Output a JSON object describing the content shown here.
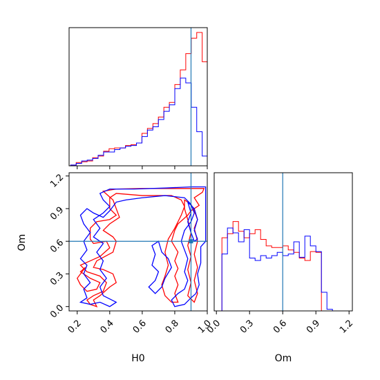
{
  "colors": {
    "red": "#ff0000",
    "blue": "#0000ff",
    "truth": "#1f77b4"
  },
  "truth": {
    "H0": 0.9,
    "Om": 0.6
  },
  "axis_labels": {
    "x_left": "H0",
    "x_right": "Om",
    "y_left": "Om"
  },
  "chart_data": [
    {
      "panel": "H0 marginal",
      "type": "histogram",
      "xlim": [
        0.15,
        1.0
      ],
      "grid": false,
      "x_ticks": [
        0.2,
        0.4,
        0.6,
        0.8,
        1.0
      ],
      "y_ticks": [],
      "bin_edges": [
        0.16,
        0.1937,
        0.2274,
        0.2611,
        0.2948,
        0.3285,
        0.3622,
        0.3959,
        0.4296,
        0.4633,
        0.497,
        0.5307,
        0.5644,
        0.5981,
        0.6318,
        0.6655,
        0.6992,
        0.7329,
        0.7666,
        0.8003,
        0.834,
        0.8677,
        0.9014,
        0.9351,
        0.9688,
        1.0
      ],
      "series": [
        {
          "color": "red",
          "values": [
            1,
            4,
            5,
            6,
            10,
            12,
            18,
            21,
            22,
            22,
            25,
            26,
            28,
            40,
            46,
            52,
            60,
            72,
            78,
            100,
            118,
            138,
            157,
            164,
            128
          ]
        },
        {
          "color": "blue",
          "values": [
            1,
            3,
            6,
            7,
            9,
            13,
            17,
            17,
            20,
            22,
            24,
            25,
            28,
            36,
            44,
            48,
            57,
            67,
            75,
            95,
            108,
            102,
            72,
            42,
            12
          ]
        }
      ]
    },
    {
      "panel": "Om marginal",
      "type": "histogram",
      "xlim": [
        -0.02,
        1.23
      ],
      "grid": false,
      "x_ticks": [
        0.0,
        0.3,
        0.6,
        0.9,
        1.2
      ],
      "y_ticks": [],
      "bin_edges": [
        0.0,
        0.05,
        0.1,
        0.15,
        0.2,
        0.25,
        0.3,
        0.35,
        0.4,
        0.45,
        0.5,
        0.55,
        0.6,
        0.65,
        0.7,
        0.75,
        0.8,
        0.85,
        0.9,
        0.95,
        1.0,
        1.05,
        1.1,
        1.15
      ],
      "series": [
        {
          "color": "red",
          "values": [
            0,
            90,
            95,
            110,
            98,
            90,
            95,
            100,
            88,
            80,
            78,
            78,
            80,
            75,
            72,
            65,
            62,
            73,
            72,
            0,
            0,
            0,
            0
          ]
        },
        {
          "color": "blue",
          "values": [
            0,
            70,
            102,
            96,
            85,
            100,
            65,
            62,
            68,
            65,
            68,
            72,
            68,
            70,
            85,
            66,
            92,
            80,
            73,
            23,
            2,
            0,
            0
          ]
        }
      ]
    },
    {
      "panel": "H0 vs Om joint",
      "type": "contour",
      "xlim": [
        0.15,
        1.0
      ],
      "ylim": [
        -0.04,
        1.23
      ],
      "grid": false,
      "x_ticks": [
        0.2,
        0.4,
        0.6,
        0.8,
        1.0
      ],
      "y_ticks": [
        0.0,
        0.3,
        0.6,
        0.9,
        1.2
      ],
      "series": [
        {
          "color": "red",
          "contours": [
            [
              [
                0.36,
                1.06
              ],
              [
                0.44,
                1.08
              ],
              [
                0.6,
                1.085
              ],
              [
                0.8,
                1.085
              ],
              [
                0.98,
                1.085
              ],
              [
                0.97,
                1.05
              ],
              [
                0.92,
                1.0
              ],
              [
                0.95,
                0.93
              ],
              [
                0.92,
                0.9
              ],
              [
                0.9,
                0.88
              ],
              [
                0.88,
                0.84
              ],
              [
                0.85,
                0.8
              ],
              [
                0.82,
                0.76
              ],
              [
                0.8,
                0.7
              ],
              [
                0.78,
                0.6
              ],
              [
                0.82,
                0.5
              ],
              [
                0.8,
                0.42
              ],
              [
                0.82,
                0.35
              ],
              [
                0.8,
                0.28
              ],
              [
                0.82,
                0.2
              ],
              [
                0.8,
                0.12
              ],
              [
                0.82,
                0.04
              ],
              [
                0.78,
                0.04
              ],
              [
                0.74,
                0.1
              ],
              [
                0.72,
                0.2
              ],
              [
                0.74,
                0.28
              ],
              [
                0.76,
                0.38
              ],
              [
                0.74,
                0.5
              ],
              [
                0.76,
                0.62
              ],
              [
                0.8,
                0.72
              ],
              [
                0.84,
                0.84
              ],
              [
                0.86,
                0.92
              ],
              [
                0.84,
                0.98
              ],
              [
                0.78,
                1.02
              ],
              [
                0.6,
                1.02
              ],
              [
                0.44,
                1.04
              ],
              [
                0.4,
                1.0
              ],
              [
                0.4,
                0.9
              ],
              [
                0.44,
                0.84
              ],
              [
                0.4,
                0.8
              ],
              [
                0.32,
                0.78
              ],
              [
                0.28,
                0.72
              ],
              [
                0.28,
                0.62
              ],
              [
                0.3,
                0.58
              ],
              [
                0.38,
                0.6
              ],
              [
                0.4,
                0.54
              ],
              [
                0.34,
                0.46
              ],
              [
                0.28,
                0.42
              ],
              [
                0.22,
                0.38
              ],
              [
                0.26,
                0.32
              ],
              [
                0.34,
                0.28
              ],
              [
                0.38,
                0.22
              ],
              [
                0.36,
                0.14
              ],
              [
                0.3,
                0.1
              ],
              [
                0.26,
                0.06
              ],
              [
                0.28,
                0.02
              ],
              [
                0.32,
                0.0
              ],
              [
                0.3,
                0.06
              ],
              [
                0.34,
                0.1
              ],
              [
                0.4,
                0.18
              ],
              [
                0.44,
                0.22
              ],
              [
                0.42,
                0.3
              ],
              [
                0.36,
                0.34
              ],
              [
                0.3,
                0.36
              ],
              [
                0.32,
                0.42
              ],
              [
                0.42,
                0.5
              ],
              [
                0.44,
                0.6
              ],
              [
                0.42,
                0.64
              ],
              [
                0.36,
                0.7
              ],
              [
                0.4,
                0.76
              ],
              [
                0.46,
                0.82
              ],
              [
                0.44,
                0.9
              ],
              [
                0.42,
                0.98
              ],
              [
                0.36,
                1.06
              ]
            ],
            [
              [
                0.25,
                0.36
              ],
              [
                0.22,
                0.32
              ],
              [
                0.28,
                0.26
              ],
              [
                0.34,
                0.22
              ],
              [
                0.32,
                0.16
              ],
              [
                0.26,
                0.14
              ],
              [
                0.22,
                0.2
              ],
              [
                0.2,
                0.26
              ],
              [
                0.25,
                0.36
              ]
            ],
            [
              [
                0.86,
                0.98
              ],
              [
                0.9,
                0.94
              ],
              [
                0.92,
                0.88
              ],
              [
                0.94,
                0.8
              ],
              [
                0.92,
                0.72
              ],
              [
                0.94,
                0.6
              ],
              [
                0.92,
                0.48
              ],
              [
                0.94,
                0.36
              ],
              [
                0.92,
                0.24
              ],
              [
                0.94,
                0.12
              ],
              [
                0.92,
                0.04
              ],
              [
                0.88,
                0.1
              ],
              [
                0.9,
                0.22
              ],
              [
                0.88,
                0.34
              ],
              [
                0.9,
                0.46
              ],
              [
                0.88,
                0.56
              ],
              [
                0.9,
                0.68
              ],
              [
                0.88,
                0.8
              ],
              [
                0.86,
                0.9
              ],
              [
                0.86,
                0.98
              ]
            ]
          ]
        },
        {
          "color": "blue",
          "contours": [
            [
              [
                0.34,
                1.04
              ],
              [
                0.4,
                1.08
              ],
              [
                0.55,
                1.08
              ],
              [
                0.75,
                1.09
              ],
              [
                0.9,
                1.1
              ],
              [
                0.99,
                1.1
              ],
              [
                0.99,
                0.6
              ],
              [
                0.96,
                0.55
              ],
              [
                0.96,
                0.4
              ],
              [
                0.94,
                0.3
              ],
              [
                0.95,
                0.2
              ],
              [
                0.93,
                0.12
              ],
              [
                0.9,
                0.08
              ],
              [
                0.86,
                0.02
              ],
              [
                0.8,
                0.0
              ],
              [
                0.78,
                0.06
              ],
              [
                0.82,
                0.12
              ],
              [
                0.86,
                0.16
              ],
              [
                0.88,
                0.24
              ],
              [
                0.86,
                0.32
              ],
              [
                0.88,
                0.44
              ],
              [
                0.86,
                0.52
              ],
              [
                0.84,
                0.6
              ],
              [
                0.86,
                0.7
              ],
              [
                0.9,
                0.78
              ],
              [
                0.92,
                0.86
              ],
              [
                0.9,
                0.94
              ],
              [
                0.86,
                1.0
              ],
              [
                0.74,
                1.02
              ],
              [
                0.6,
                1.0
              ],
              [
                0.5,
                0.98
              ],
              [
                0.44,
                0.96
              ],
              [
                0.4,
                0.88
              ],
              [
                0.36,
                0.82
              ],
              [
                0.3,
                0.86
              ],
              [
                0.26,
                0.9
              ],
              [
                0.22,
                0.84
              ],
              [
                0.24,
                0.76
              ],
              [
                0.28,
                0.68
              ],
              [
                0.24,
                0.6
              ],
              [
                0.26,
                0.52
              ],
              [
                0.22,
                0.44
              ],
              [
                0.26,
                0.38
              ],
              [
                0.24,
                0.3
              ],
              [
                0.28,
                0.22
              ],
              [
                0.24,
                0.16
              ],
              [
                0.26,
                0.08
              ],
              [
                0.22,
                0.04
              ],
              [
                0.28,
                0.02
              ],
              [
                0.34,
                0.04
              ],
              [
                0.4,
                0.0
              ],
              [
                0.44,
                0.04
              ],
              [
                0.36,
                0.1
              ],
              [
                0.34,
                0.18
              ],
              [
                0.38,
                0.26
              ],
              [
                0.34,
                0.34
              ],
              [
                0.36,
                0.42
              ],
              [
                0.32,
                0.5
              ],
              [
                0.36,
                0.58
              ],
              [
                0.3,
                0.64
              ],
              [
                0.34,
                0.72
              ],
              [
                0.3,
                0.8
              ],
              [
                0.36,
                0.86
              ],
              [
                0.4,
                0.92
              ],
              [
                0.36,
                0.98
              ],
              [
                0.34,
                1.04
              ]
            ],
            [
              [
                0.7,
                0.6
              ],
              [
                0.72,
                0.5
              ],
              [
                0.76,
                0.44
              ],
              [
                0.78,
                0.36
              ],
              [
                0.74,
                0.26
              ],
              [
                0.72,
                0.18
              ],
              [
                0.68,
                0.12
              ],
              [
                0.64,
                0.18
              ],
              [
                0.68,
                0.24
              ],
              [
                0.7,
                0.32
              ],
              [
                0.66,
                0.38
              ],
              [
                0.68,
                0.48
              ],
              [
                0.66,
                0.56
              ],
              [
                0.7,
                0.6
              ]
            ],
            [
              [
                0.88,
                0.96
              ],
              [
                0.92,
                0.9
              ],
              [
                0.94,
                0.8
              ],
              [
                0.92,
                0.7
              ],
              [
                0.94,
                0.62
              ],
              [
                0.92,
                0.6
              ],
              [
                0.9,
                0.68
              ],
              [
                0.88,
                0.78
              ],
              [
                0.9,
                0.86
              ],
              [
                0.88,
                0.96
              ]
            ]
          ]
        }
      ]
    }
  ]
}
